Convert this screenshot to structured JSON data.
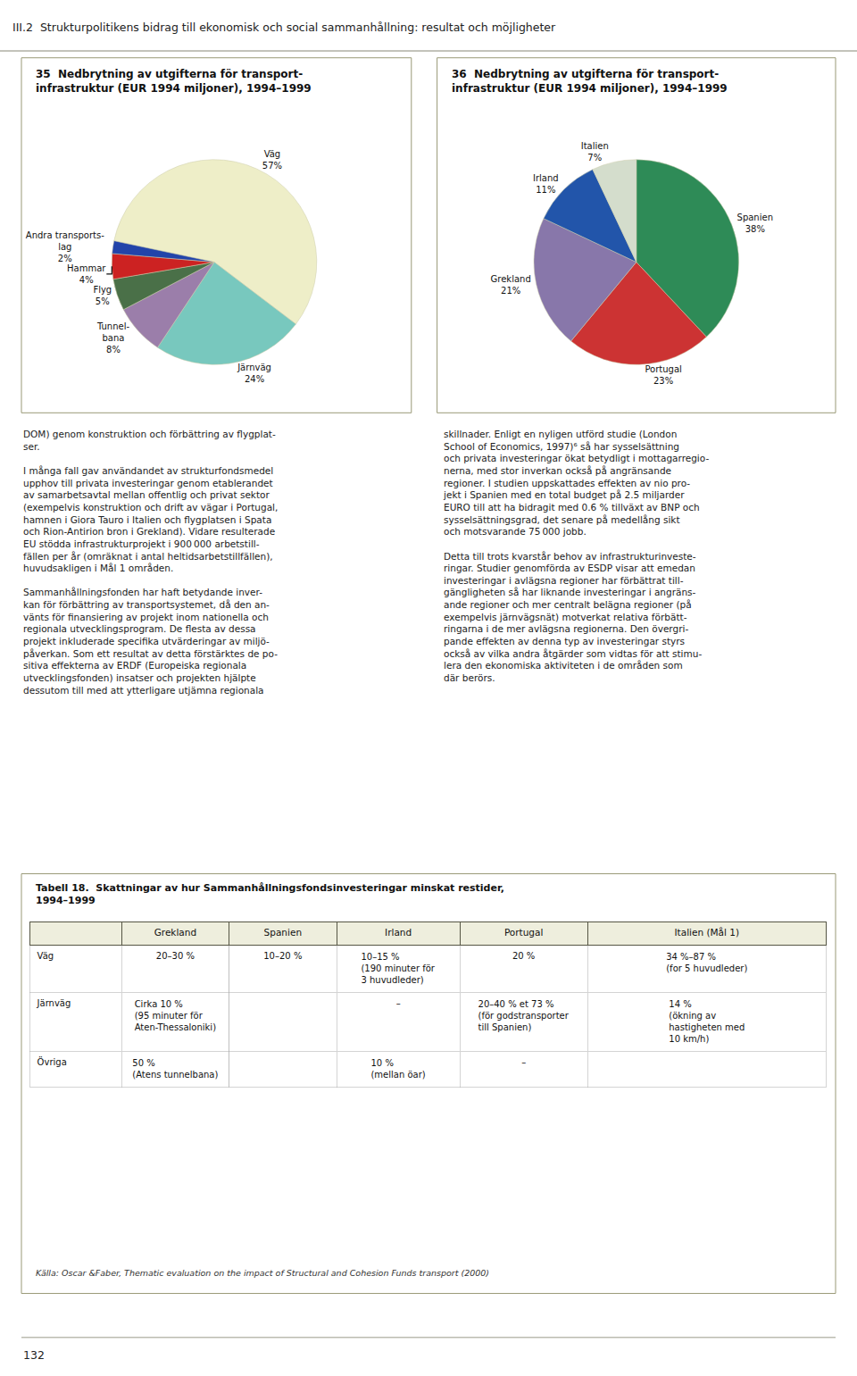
{
  "chart_data": [
    {
      "type": "pie",
      "title": "35  Nedbrytning av utgifterna för transport-\ninfrastruktur (EUR 1994 miljoner), 1994–1999",
      "categories": [
        "Väg",
        "Järnväg",
        "Tunnel-\nbana",
        "Flyg",
        "Hammar",
        "Andra transports-\nlag"
      ],
      "values": [
        57,
        24,
        8,
        5,
        4,
        2
      ],
      "value_labels": [
        "57%",
        "24%",
        "8%",
        "5%",
        "4%",
        "2%"
      ],
      "colors": [
        "#EEEEC8",
        "#78C8BE",
        "#9B7EAA",
        "#4A7048",
        "#CC2222",
        "#2244AA"
      ],
      "data_labels": true
    },
    {
      "type": "pie",
      "title": "36  Nedbrytning av utgifterna för transport-\ninfrastruktur (EUR 1994 miljoner), 1994–1999",
      "categories": [
        "Spanien",
        "Portugal",
        "Grekland",
        "Irland",
        "Italien"
      ],
      "values": [
        38,
        23,
        21,
        11,
        7
      ],
      "value_labels": [
        "38%",
        "23%",
        "21%",
        "11%",
        "7%"
      ],
      "colors": [
        "#2E8B57",
        "#CC3333",
        "#8877AA",
        "#2255AA",
        "#D4DDCC"
      ],
      "data_labels": true
    }
  ],
  "header": "III.2  Strukturpolitikens bidrag till ekonomisk och social sammanhållning: resultat och möjligheter",
  "body_left": "DOM) genom konstruktion och förbättring av flygplat-\nser.\n\nI många fall gav användandet av strukturfondsmedel\nupphov till privata investeringar genom etablerandet\nav samarbetsavtal mellan offentlig och privat sektor\n(exempelvis konstruktion och drift av vägar i Portugal,\nhamnen i Giora Tauro i Italien och flygplatsen i Spata\noch Rion-Antirion bron i Grekland). Vidare resulterade\nEU stödda infrastrukturprojekt i 900 000 arbetstill-\nfällen per år (omräknat i antal heltidsarbetstillfällen),\nhuvudsakligen i Mål 1 områden.\n\nSammanhållningsfonden har haft betydande inver-\nkan för förbättring av transportsystemet, då den an-\nvänts för finansiering av projekt inom nationella och\nregionala utvecklingsprogram. De flesta av dessa\nprojekt inkluderade specifika utvärderingar av miljö-\npåverkan. Som ett resultat av detta förstärktes de po-\nsitiva effekterna av ERDF (Europeiska regionala\nutvecklingsfonden) insatser och projekten hjälpte\ndessutom till med att ytterligare utjämna regionala",
  "body_right": "skillnader. Enligt en nyligen utförd studie (London\nSchool of Economics, 1997)⁶ så har sysselsättning\noch privata investeringar ökat betydligt i mottagarregio-\nnerna, med stor inverkan också på angränsande\nregioner. I studien uppskattades effekten av nio pro-\njekt i Spanien med en total budget på 2.5 miljarder\nEURO till att ha bidragit med 0.6 % tillväxt av BNP och\nsysselsättningsgrad, det senare på medellång sikt\noch motsvarande 75 000 jobb.\n\nDetta till trots kvarstår behov av infrastrukturinveste-\nringar. Studier genomförda av ESDP visar att emedan\ninvesteringar i avlägsna regioner har förbättrat till-\ngängligheten så har liknande investeringar i angräns-\nande regioner och mer centralt belägna regioner (på\nexempelvis järnvägsnät) motverkat relativa förbätt-\nringarna i de mer avlägsna regionerna. Den övergri-\npande effekten av denna typ av investeringar styrs\nockså av vilka andra åtgärder som vidtas för att stimu-\nlera den ekonomiska aktiviteten i de områden som\ndär berörs.",
  "table": {
    "title": "Tabell 18.  Skattningar av hur Sammanhållningsfondsinvesteringar minskat restider,\n1994–1999",
    "headers": [
      null,
      "Grekland",
      "Spanien",
      "Irland",
      "Portugal",
      "Italien (Mål 1)"
    ],
    "rows": [
      {
        "label": "Väg",
        "cells": [
          "20–30 %",
          "10–20 %",
          "10–15 %\n(190 minuter för\n3 huvudleder)",
          "20 %",
          "34 %–87 %\n(for 5 huvudleder)"
        ]
      },
      {
        "label": "Järnväg",
        "cells": [
          "Cirka 10 %\n(95 minuter för\nAten-Thessaloniki)",
          null,
          "–",
          "20–40 % et 73 %\n(för godstransporter\ntill Spanien)",
          "14 %\n(ökning av\nhastigheten med\n10 km/h)"
        ]
      },
      {
        "label": "Övriga",
        "cells": [
          "50 %\n(Atens tunnelbana)",
          null,
          "10 %\n(mellan öar)",
          "–",
          null
        ]
      }
    ],
    "footer": "Källa: Oscar &Faber, Thematic evaluation on the impact of Structural and Cohesion Funds transport (2000)"
  },
  "page_number": "132"
}
